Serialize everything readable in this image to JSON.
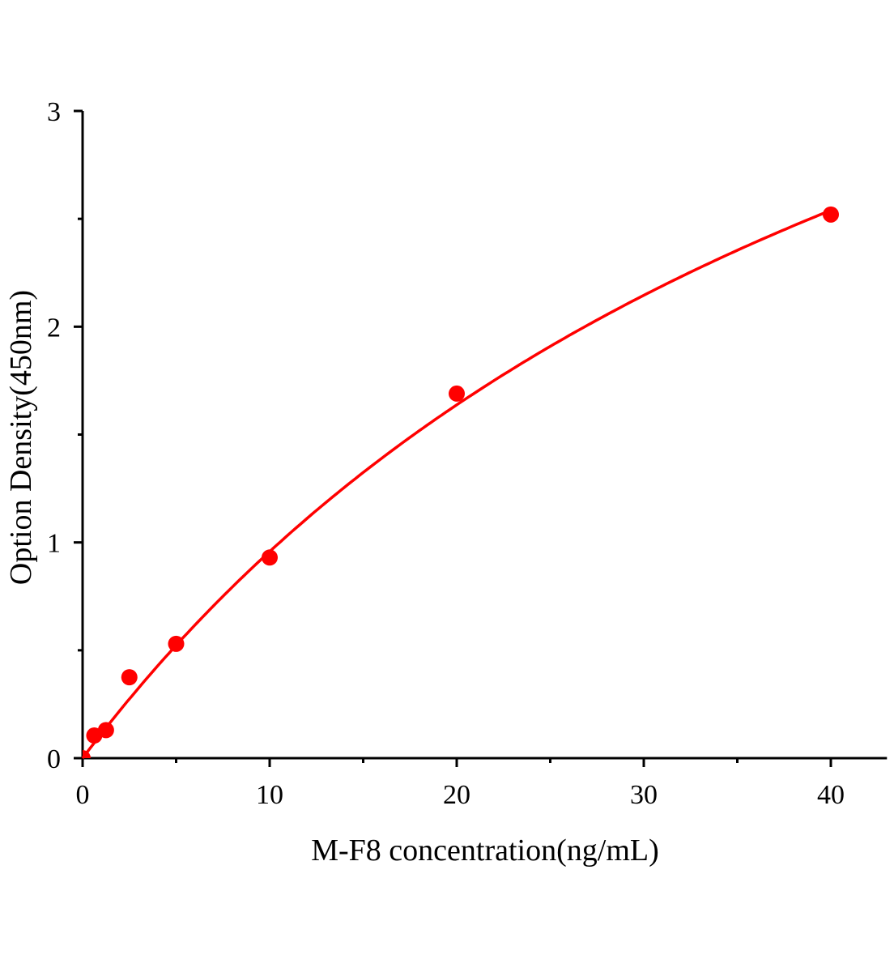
{
  "chart_data": {
    "type": "scatter",
    "title": "",
    "xlabel": "M-F8 concentration(ng/mL)",
    "ylabel": "Option Density(450nm)",
    "xlim": [
      0,
      43
    ],
    "ylim": [
      0,
      3
    ],
    "x_ticks": [
      "0",
      "10",
      "20",
      "30",
      "40"
    ],
    "y_ticks": [
      "0",
      "1",
      "2",
      "3"
    ],
    "grid": false,
    "colors": {
      "series": "#ff0000",
      "axis": "#000000"
    },
    "series": [
      {
        "points": [
          {
            "x": 0,
            "y": 0
          },
          {
            "x": 0.625,
            "y": 0.105
          },
          {
            "x": 1.25,
            "y": 0.13
          },
          {
            "x": 2.5,
            "y": 0.375
          },
          {
            "x": 5,
            "y": 0.53
          },
          {
            "x": 10,
            "y": 0.93
          },
          {
            "x": 20,
            "y": 1.69
          },
          {
            "x": 40,
            "y": 2.52
          }
        ],
        "fit_line": true
      }
    ]
  }
}
